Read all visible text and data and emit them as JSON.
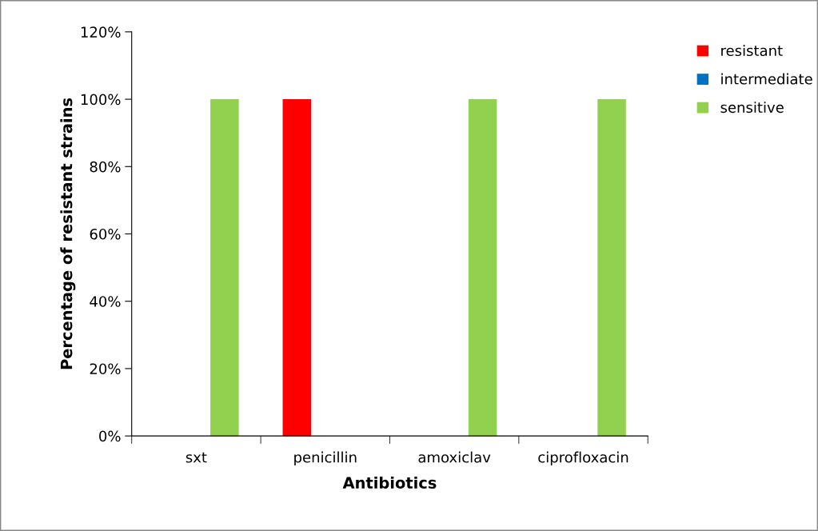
{
  "chart_data": {
    "type": "bar",
    "xlabel": "Antibiotics",
    "ylabel": "Percentage of resistant strains",
    "categories": [
      "sxt",
      "penicillin",
      "amoxiclav",
      "ciprofloxacin"
    ],
    "series": [
      {
        "name": "resistant",
        "color": "#ff0000",
        "values": [
          0,
          100,
          0,
          0
        ]
      },
      {
        "name": "intermediate",
        "color": "#0070c0",
        "values": [
          0,
          0,
          0,
          0
        ]
      },
      {
        "name": "sensitive",
        "color": "#92d050",
        "values": [
          100,
          0,
          100,
          100
        ]
      }
    ],
    "ylim": [
      0,
      120
    ],
    "yticks": [
      {
        "value": 0,
        "label": "0%"
      },
      {
        "value": 20,
        "label": "20%"
      },
      {
        "value": 40,
        "label": "40%"
      },
      {
        "value": 60,
        "label": "60%"
      },
      {
        "value": 80,
        "label": "80%"
      },
      {
        "value": 100,
        "label": "100%"
      },
      {
        "value": 120,
        "label": "120%"
      }
    ],
    "grid": false,
    "legend": "top right"
  }
}
